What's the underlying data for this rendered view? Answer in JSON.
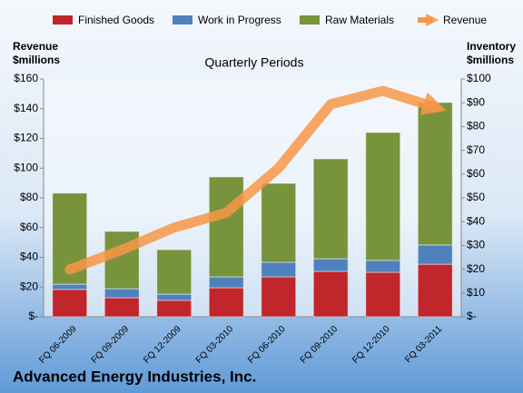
{
  "chart_data": {
    "type": "bar-line",
    "title": "Advanced Energy Industries, Inc.",
    "subtitle": "Quarterly Periods",
    "y_label": "Revenue $millions",
    "y2_label": "Inventory $millions",
    "categories": [
      "FQ 06-2009",
      "FQ 09-2009",
      "FQ 12-2009",
      "FQ 03-2010",
      "FQ 06-2010",
      "FQ 09-2010",
      "FQ 12-2010",
      "FQ 03-2011"
    ],
    "series": [
      {
        "name": "Finished Goods",
        "color": "#c0262c",
        "axis": "y2",
        "values": [
          11.5,
          8,
          6.9,
          12.2,
          16.8,
          19.1,
          18.7,
          22.1
        ]
      },
      {
        "name": "Work in Progress",
        "color": "#4f81bd",
        "axis": "y2",
        "values": [
          2.2,
          3.8,
          2.6,
          4.6,
          6.1,
          5.3,
          5,
          8.1
        ]
      },
      {
        "name": "Raw Materials",
        "color": "#77933c",
        "axis": "y2",
        "values": [
          38.3,
          24.1,
          18.7,
          42,
          33.2,
          42,
          53.8,
          59.9
        ]
      },
      {
        "name": "Revenue",
        "color": "#f79646",
        "values": [
          31.8,
          45,
          60,
          70,
          100,
          143,
          152,
          141
        ]
      }
    ],
    "ylim": [
      0,
      160
    ],
    "yticks": [
      {
        "value": 0,
        "label": "$-"
      },
      {
        "value": 20,
        "label": "$20"
      },
      {
        "value": 40,
        "label": "$40"
      },
      {
        "value": 60,
        "label": "$60"
      },
      {
        "value": 80,
        "label": "$80"
      },
      {
        "value": 100,
        "label": "$100"
      },
      {
        "value": 120,
        "label": "$120"
      },
      {
        "value": 140,
        "label": "$140"
      },
      {
        "value": 160,
        "label": "$160"
      }
    ],
    "y2lim": [
      0,
      100
    ],
    "y2ticks": [
      {
        "value": 0,
        "label": "$-"
      },
      {
        "value": 10,
        "label": "$10"
      },
      {
        "value": 20,
        "label": "$20"
      },
      {
        "value": 30,
        "label": "$30"
      },
      {
        "value": 40,
        "label": "$40"
      },
      {
        "value": 50,
        "label": "$50"
      },
      {
        "value": 60,
        "label": "$60"
      },
      {
        "value": 70,
        "label": "$70"
      },
      {
        "value": 80,
        "label": "$80"
      },
      {
        "value": 90,
        "label": "$90"
      },
      {
        "value": 100,
        "label": "$100"
      }
    ]
  }
}
